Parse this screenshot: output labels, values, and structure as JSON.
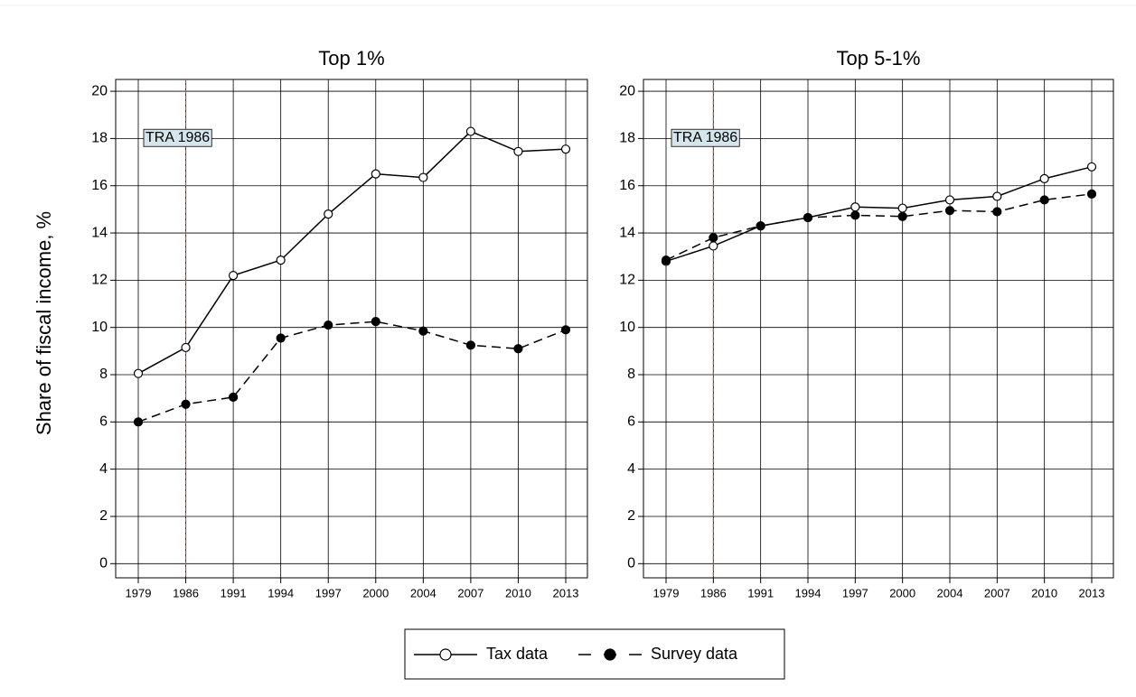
{
  "chart_data": [
    {
      "type": "line",
      "title": "Top 1%",
      "ylabel": "Share of fiscal income, %",
      "categories": [
        "1979",
        "1986",
        "1991",
        "1994",
        "1997",
        "2000",
        "2004",
        "2007",
        "2010",
        "2013"
      ],
      "series": [
        {
          "name": "Tax data",
          "color": "#000000",
          "line": "solid",
          "marker": "hollow",
          "values": [
            8.05,
            9.15,
            12.2,
            12.85,
            14.8,
            16.5,
            16.35,
            18.3,
            17.45,
            17.55
          ]
        },
        {
          "name": "Survey data",
          "color": "#000000",
          "line": "dashed",
          "marker": "filled",
          "values": [
            6.0,
            6.75,
            7.05,
            9.55,
            10.1,
            10.25,
            9.85,
            9.25,
            9.1,
            9.9
          ]
        }
      ],
      "ylim": [
        -0.6,
        20.5
      ],
      "yticks": [
        0,
        2,
        4,
        6,
        8,
        10,
        12,
        14,
        16,
        18,
        20
      ],
      "grid": true,
      "vline": "1986",
      "vline_color": "#c0504d",
      "annotation": "TRA 1986"
    },
    {
      "type": "line",
      "title": "Top 5-1%",
      "categories": [
        "1979",
        "1986",
        "1991",
        "1994",
        "1997",
        "2000",
        "2004",
        "2007",
        "2010",
        "2013"
      ],
      "series": [
        {
          "color": "#000000",
          "line": "solid",
          "marker": "hollow",
          "values": [
            12.8,
            13.45,
            14.3,
            14.65,
            15.1,
            15.05,
            15.4,
            15.55,
            16.3,
            16.8
          ]
        },
        {
          "color": "#000000",
          "line": "dashed",
          "marker": "filled",
          "values": [
            12.85,
            13.8,
            14.3,
            14.65,
            14.75,
            14.7,
            14.95,
            14.9,
            15.4,
            15.65
          ]
        }
      ],
      "ylim": [
        -0.6,
        20.5
      ],
      "yticks": [
        0,
        2,
        4,
        6,
        8,
        10,
        12,
        14,
        16,
        18,
        20
      ],
      "grid": true,
      "vline": "1986",
      "vline_color": "#c0504d",
      "annotation": "TRA 1986"
    }
  ]
}
